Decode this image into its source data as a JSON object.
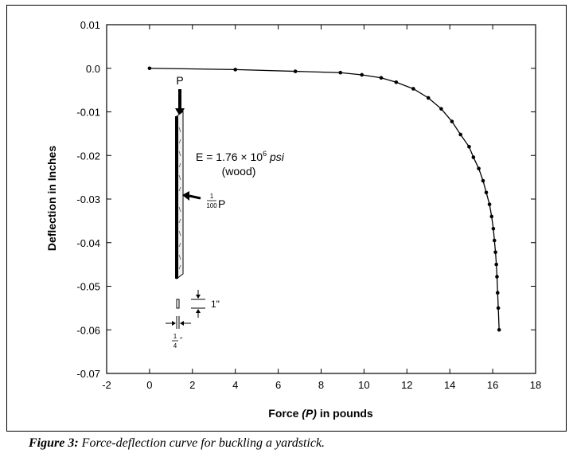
{
  "chart_data": {
    "type": "line",
    "title": "",
    "xlabel": {
      "pre": "Force ",
      "var": "(P)",
      "post": " in pounds"
    },
    "ylabel": "Deflection in Inches",
    "xlim": [
      -2,
      18
    ],
    "ylim": [
      -0.07,
      0.01
    ],
    "x_ticks": [
      "-2",
      "0",
      "2",
      "4",
      "6",
      "8",
      "10",
      "12",
      "14",
      "16",
      "18"
    ],
    "y_ticks": [
      "0.01",
      "0.0",
      "-0.01",
      "-0.02",
      "-0.03",
      "-0.04",
      "-0.05",
      "-0.06",
      "-0.07"
    ],
    "grid": false,
    "series": [
      {
        "x": [
          0.0,
          4.0,
          6.8,
          8.9,
          9.9,
          10.8,
          11.5,
          12.3,
          13.0,
          13.6,
          14.1,
          14.5,
          14.9,
          15.1,
          15.35,
          15.55,
          15.7,
          15.85,
          15.95,
          16.03,
          16.08,
          16.13,
          16.17,
          16.2,
          16.23,
          16.26,
          16.3
        ],
        "y": [
          0.0,
          -0.0003,
          -0.0007,
          -0.001,
          -0.0015,
          -0.0022,
          -0.0032,
          -0.0047,
          -0.0068,
          -0.0093,
          -0.0122,
          -0.0152,
          -0.018,
          -0.0204,
          -0.023,
          -0.0258,
          -0.0285,
          -0.0312,
          -0.034,
          -0.0368,
          -0.0395,
          -0.0422,
          -0.045,
          -0.0478,
          -0.0515,
          -0.055,
          -0.06
        ]
      }
    ]
  },
  "annotations": {
    "load_label": "P",
    "modulus_lead": "E = 1.76 × 10",
    "modulus_exp": "6",
    "modulus_unit": "psi",
    "material": "(wood)",
    "side_load_num": "1",
    "side_load_den": "100",
    "side_load_var": "P",
    "height_dim": "1\"",
    "width_num": "1",
    "width_den": "4",
    "width_unit": "\""
  },
  "caption": {
    "label": "Figure 3:",
    "text": " Force-deflection curve for buckling a yardstick."
  }
}
